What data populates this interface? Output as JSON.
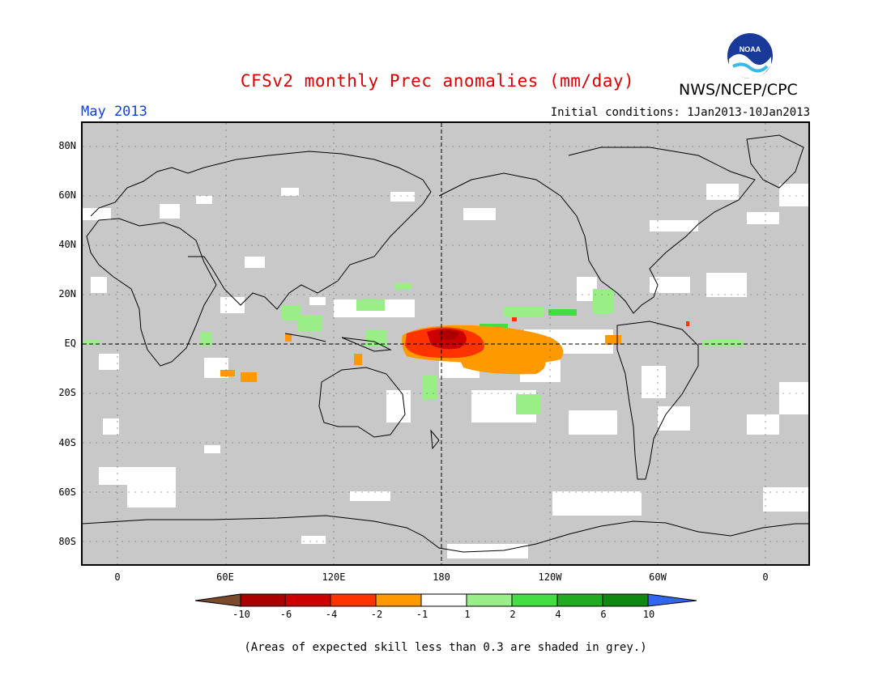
{
  "title": "CFSv2 monthly Prec anomalies (mm/day)",
  "agency": "NWS/NCEP/CPC",
  "logo_text": "NOAA",
  "month": "May 2013",
  "initial_conditions": "Initial conditions: 1Jan2013-10Jan2013",
  "lat_labels": [
    "80N",
    "60N",
    "40N",
    "20N",
    "EQ",
    "20S",
    "40S",
    "60S",
    "80S"
  ],
  "lon_labels": [
    "0",
    "60E",
    "120E",
    "180",
    "120W",
    "60W",
    "0"
  ],
  "colorbar": {
    "labels": [
      "-10",
      "-6",
      "-4",
      "-2",
      "-1",
      "1",
      "2",
      "4",
      "6",
      "10"
    ],
    "colors": [
      "#7a4a2a",
      "#aa0000",
      "#cc0000",
      "#ff3300",
      "#ff9900",
      "#ffffff",
      "#99ee88",
      "#44dd44",
      "#22aa22",
      "#118811",
      "#3366ee"
    ]
  },
  "footnote": "(Areas of expected skill less than 0.3 are shaded in grey.)",
  "colors": {
    "skill_mask": "#c8c8c8",
    "neutral": "#ffffff",
    "title": "#e00000",
    "month": "#1040e0"
  }
}
